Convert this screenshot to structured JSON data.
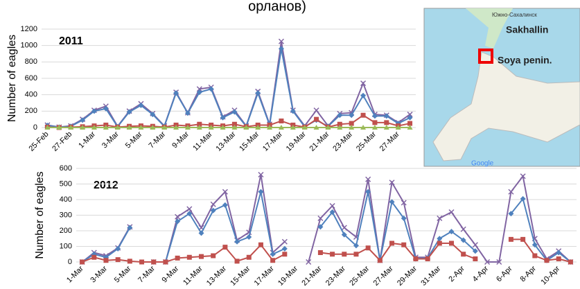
{
  "title_fragment": "орланов)",
  "chart_data": [
    {
      "type": "line",
      "title": "2011",
      "ylabel": "Number of eagles",
      "categories": [
        "25-Feb",
        null,
        "27-Feb",
        null,
        "1-Mar",
        null,
        "3-Mar",
        null,
        "5-Mar",
        null,
        "7-Mar",
        null,
        "9-Mar",
        null,
        "11-Mar",
        null,
        "13-Mar",
        null,
        "15-Mar",
        null,
        "17-Mar",
        null,
        "19-Mar",
        null,
        "21-Mar",
        null,
        "23-Mar",
        null,
        "25-Mar",
        null,
        "27-Mar",
        null
      ],
      "ylim": [
        0,
        1200
      ],
      "yticks": [
        0,
        200,
        400,
        600,
        800,
        1000,
        1200
      ],
      "grid": true,
      "series": [
        {
          "color": "#8064a2",
          "marker": "x",
          "values": [
            30,
            5,
            20,
            100,
            210,
            260,
            15,
            200,
            290,
            170,
            20,
            430,
            180,
            470,
            490,
            130,
            210,
            20,
            440,
            40,
            1050,
            210,
            20,
            210,
            20,
            170,
            180,
            540,
            160,
            150,
            60,
            160
          ]
        },
        {
          "color": "#4f81bd",
          "marker": "diamond",
          "values": [
            25,
            5,
            15,
            90,
            200,
            230,
            10,
            190,
            270,
            160,
            15,
            420,
            175,
            430,
            470,
            120,
            190,
            15,
            420,
            30,
            960,
            200,
            10,
            90,
            15,
            150,
            150,
            390,
            140,
            140,
            50,
            120
          ]
        },
        {
          "color": "#c0504d",
          "marker": "square",
          "values": [
            5,
            0,
            5,
            10,
            20,
            30,
            5,
            15,
            20,
            15,
            5,
            30,
            20,
            40,
            30,
            20,
            40,
            10,
            30,
            30,
            80,
            30,
            5,
            100,
            5,
            40,
            50,
            150,
            60,
            60,
            20,
            50
          ]
        },
        {
          "color": "#9bbb59",
          "marker": "triangle",
          "values": [
            0,
            0,
            0,
            0,
            0,
            0,
            0,
            0,
            0,
            0,
            0,
            0,
            0,
            0,
            0,
            0,
            0,
            0,
            0,
            0,
            0,
            0,
            0,
            0,
            0,
            0,
            0,
            0,
            0,
            0,
            0,
            0
          ]
        }
      ]
    },
    {
      "type": "line",
      "title": "2012",
      "ylabel": "Number of eagles",
      "categories": [
        "1-Mar",
        null,
        "3-Mar",
        null,
        "5-Mar",
        null,
        "7-Mar",
        null,
        "9-Mar",
        null,
        "11-Mar",
        null,
        "13-Mar",
        null,
        "15-Mar",
        null,
        "17-Mar",
        null,
        "19-Mar",
        null,
        "21-Mar",
        null,
        "23-Mar",
        null,
        "25-Mar",
        null,
        "27-Mar",
        null,
        "29-Mar",
        null,
        "31-Mar",
        null,
        "2-Apr",
        null,
        "4-Apr",
        null,
        "6-Apr",
        null,
        "8-Apr",
        null,
        "10-Apr",
        null
      ],
      "ylim": [
        0,
        600
      ],
      "yticks": [
        0,
        100,
        200,
        300,
        400,
        500,
        600
      ],
      "grid": true,
      "series": [
        {
          "color": "#8064a2",
          "marker": "x",
          "values": [
            0,
            60,
            40,
            90,
            225,
            null,
            0,
            0,
            290,
            340,
            220,
            370,
            450,
            140,
            190,
            560,
            60,
            130,
            null,
            0,
            280,
            360,
            220,
            160,
            530,
            10,
            510,
            380,
            30,
            30,
            280,
            320,
            210,
            110,
            0,
            0,
            450,
            550,
            150,
            20,
            70,
            0
          ]
        },
        {
          "color": "#4f81bd",
          "marker": "diamond",
          "values": [
            0,
            50,
            30,
            85,
            220,
            null,
            0,
            0,
            260,
            310,
            185,
            330,
            365,
            130,
            160,
            450,
            50,
            85,
            null,
            null,
            225,
            320,
            175,
            105,
            450,
            10,
            385,
            280,
            20,
            25,
            150,
            195,
            140,
            70,
            null,
            null,
            310,
            405,
            110,
            10,
            60,
            0
          ]
        },
        {
          "color": "#c0504d",
          "marker": "square",
          "values": [
            0,
            30,
            10,
            15,
            5,
            0,
            0,
            0,
            25,
            30,
            35,
            40,
            95,
            5,
            30,
            110,
            10,
            50,
            null,
            null,
            60,
            50,
            50,
            50,
            90,
            10,
            120,
            110,
            20,
            20,
            120,
            120,
            50,
            20,
            null,
            null,
            145,
            145,
            40,
            10,
            20,
            0
          ]
        }
      ]
    }
  ],
  "map": {
    "city": "Южно-Сахалинск",
    "label_1": "Sakhallin",
    "label_2": "Soya penin.",
    "credit": "Google"
  }
}
